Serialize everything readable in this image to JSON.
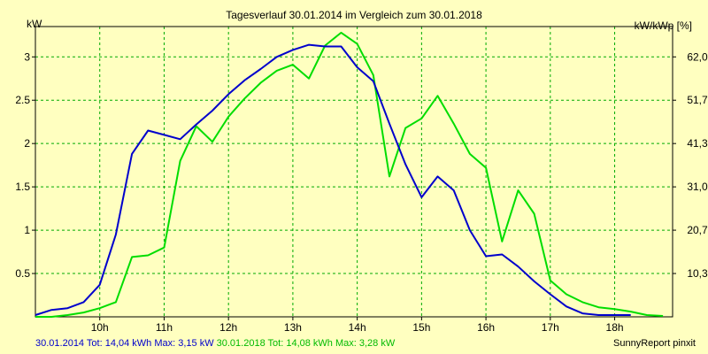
{
  "chart_data": {
    "type": "line",
    "title": "Tagesverlauf 30.01.2014 im Vergleich zum 30.01.2018",
    "ylabel_left": "kW",
    "ylabel_right": "kW/kWp [%]",
    "xlim": [
      9.0,
      18.9
    ],
    "ylim": [
      0,
      3.35
    ],
    "x_ticks": [
      10,
      11,
      12,
      13,
      14,
      15,
      16,
      17,
      18
    ],
    "x_tick_labels": [
      "10h",
      "11h",
      "12h",
      "13h",
      "14h",
      "15h",
      "16h",
      "17h",
      "18h"
    ],
    "y_ticks_left": [
      0.5,
      1,
      1.5,
      2,
      2.5,
      3
    ],
    "y_tick_labels_left": [
      "0.5",
      "1",
      "1.5",
      "2",
      "2.5",
      "3"
    ],
    "y_tick_labels_right": [
      "10,3",
      "20,7",
      "31,0",
      "41,3",
      "51,7",
      "62,0"
    ],
    "grid": true,
    "series": [
      {
        "name": "30.01.2014",
        "color": "#0000cc",
        "x": [
          9.0,
          9.25,
          9.5,
          9.75,
          10.0,
          10.25,
          10.5,
          10.75,
          11.0,
          11.25,
          11.5,
          11.75,
          12.0,
          12.25,
          12.5,
          12.75,
          13.0,
          13.25,
          13.5,
          13.75,
          14.0,
          14.25,
          14.5,
          14.75,
          15.0,
          15.25,
          15.5,
          15.75,
          16.0,
          16.25,
          16.5,
          16.75,
          17.0,
          17.25,
          17.5,
          17.75,
          18.0,
          18.25
        ],
        "values": [
          0.02,
          0.08,
          0.1,
          0.17,
          0.37,
          0.95,
          1.88,
          2.15,
          2.1,
          2.05,
          2.22,
          2.38,
          2.57,
          2.73,
          2.86,
          3.0,
          3.08,
          3.14,
          3.12,
          3.12,
          2.88,
          2.72,
          2.23,
          1.76,
          1.38,
          1.62,
          1.46,
          1.0,
          0.7,
          0.72,
          0.58,
          0.41,
          0.26,
          0.12,
          0.04,
          0.02,
          0.02,
          0.02
        ]
      },
      {
        "name": "30.01.2018",
        "color": "#00dd00",
        "x": [
          9.0,
          9.25,
          9.5,
          9.75,
          10.0,
          10.25,
          10.5,
          10.75,
          11.0,
          11.25,
          11.5,
          11.75,
          12.0,
          12.25,
          12.5,
          12.75,
          13.0,
          13.25,
          13.5,
          13.75,
          14.0,
          14.25,
          14.5,
          14.75,
          15.0,
          15.25,
          15.5,
          15.75,
          16.0,
          16.25,
          16.5,
          16.75,
          17.0,
          17.25,
          17.5,
          17.75,
          18.0,
          18.25,
          18.5,
          18.75
        ],
        "values": [
          0.0,
          0.0,
          0.02,
          0.05,
          0.1,
          0.17,
          0.69,
          0.71,
          0.8,
          1.8,
          2.2,
          2.02,
          2.31,
          2.52,
          2.7,
          2.84,
          2.91,
          2.75,
          3.13,
          3.28,
          3.15,
          2.79,
          1.62,
          2.18,
          2.29,
          2.55,
          2.23,
          1.88,
          1.72,
          0.87,
          1.46,
          1.19,
          0.42,
          0.26,
          0.17,
          0.11,
          0.09,
          0.06,
          0.02,
          0.01
        ]
      }
    ],
    "footer": {
      "s1_text": "30.01.2014 Tot: 14,04 kWh Max: 3,15 kW",
      "s2_text": "30.01.2018 Tot: 14,08 kWh Max: 3,28 kW"
    },
    "credit": "SunnyReport pinxit",
    "colors": {
      "background": "#ffffc0",
      "grid": "#00aa00",
      "axis": "#000000"
    }
  }
}
